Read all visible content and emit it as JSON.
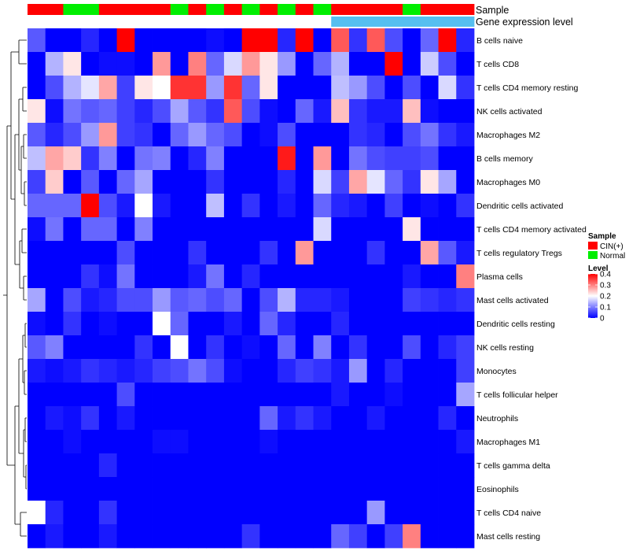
{
  "chart_data": {
    "type": "heatmap",
    "title": "",
    "annotation_tracks": [
      {
        "name": "Sample",
        "values": [
          "CIN(+)",
          "CIN(+)",
          "Normal",
          "Normal",
          "CIN(+)",
          "CIN(+)",
          "CIN(+)",
          "CIN(+)",
          "Normal",
          "CIN(+)",
          "Normal",
          "CIN(+)",
          "Normal",
          "CIN(+)",
          "Normal",
          "CIN(+)",
          "Normal",
          "CIN(+)",
          "CIN(+)",
          "CIN(+)",
          "CIN(+)",
          "Normal",
          "CIN(+)",
          "CIN(+)",
          "CIN(+)"
        ]
      },
      {
        "name": "Gene expression level",
        "values": [
          "Low",
          "Low",
          "Low",
          "Low",
          "Low",
          "Low",
          "Low",
          "Low",
          "Low",
          "Low",
          "Low",
          "Low",
          "Low",
          "Low",
          "Low",
          "Low",
          "Low",
          "High",
          "High",
          "High",
          "High",
          "High",
          "High",
          "High",
          "High"
        ]
      }
    ],
    "rows": [
      "B cells naive",
      "T cells CD8",
      "T cells CD4 memory resting",
      "NK cells activated",
      "Macrophages M2",
      "B cells memory",
      "Macrophages M0",
      "Dendritic cells activated",
      "T cells CD4 memory activated",
      "T cells regulatory  Tregs",
      "Plasma cells",
      "Mast cells activated",
      "Dendritic cells resting",
      "NK cells resting",
      "Monocytes",
      "T cells follicular helper",
      "Neutrophils",
      "Macrophages M1",
      "T cells gamma delta",
      "Eosinophils",
      "T cells CD4 naive",
      "Mast cells resting"
    ],
    "values": [
      [
        0.07,
        0.0,
        0.0,
        0.03,
        0.0,
        0.4,
        0.0,
        0.0,
        0.0,
        0.0,
        0.01,
        0.0,
        0.4,
        0.4,
        0.03,
        0.4,
        0.0,
        0.33,
        0.04,
        0.33,
        0.06,
        0.0,
        0.08,
        0.4,
        0.03
      ],
      [
        0.0,
        0.14,
        0.22,
        0.0,
        0.01,
        0.01,
        0.0,
        0.28,
        0.0,
        0.3,
        0.08,
        0.17,
        0.28,
        0.22,
        0.12,
        0.0,
        0.08,
        0.14,
        0.0,
        0.0,
        0.4,
        0.0,
        0.16,
        0.06,
        0.0
      ],
      [
        0.0,
        0.06,
        0.14,
        0.18,
        0.27,
        0.05,
        0.22,
        0.2,
        0.36,
        0.36,
        0.12,
        0.36,
        0.08,
        0.22,
        0.0,
        0.0,
        0.0,
        0.15,
        0.12,
        0.06,
        0.0,
        0.06,
        0.0,
        0.17,
        0.04
      ],
      [
        0.22,
        0.01,
        0.09,
        0.07,
        0.08,
        0.05,
        0.03,
        0.06,
        0.13,
        0.07,
        0.04,
        0.33,
        0.06,
        0.01,
        0.0,
        0.08,
        0.02,
        0.25,
        0.04,
        0.02,
        0.02,
        0.25,
        0.01,
        0.0,
        0.0
      ],
      [
        0.07,
        0.03,
        0.06,
        0.12,
        0.28,
        0.05,
        0.04,
        0.0,
        0.08,
        0.12,
        0.08,
        0.06,
        0.0,
        0.01,
        0.06,
        0.0,
        0.0,
        0.0,
        0.04,
        0.03,
        0.0,
        0.06,
        0.09,
        0.04,
        0.02
      ],
      [
        0.15,
        0.27,
        0.24,
        0.04,
        0.1,
        0.0,
        0.09,
        0.1,
        0.0,
        0.03,
        0.1,
        0.0,
        0.0,
        0.0,
        0.38,
        0.0,
        0.28,
        0.0,
        0.09,
        0.06,
        0.05,
        0.05,
        0.06,
        0.0,
        0.0
      ],
      [
        0.05,
        0.24,
        0.0,
        0.07,
        0.0,
        0.08,
        0.13,
        0.0,
        0.0,
        0.0,
        0.04,
        0.0,
        0.0,
        0.0,
        0.03,
        0.0,
        0.17,
        0.05,
        0.27,
        0.18,
        0.08,
        0.04,
        0.22,
        0.13,
        0.0
      ],
      [
        0.08,
        0.08,
        0.08,
        0.4,
        0.06,
        0.02,
        0.2,
        0.02,
        0.0,
        0.0,
        0.15,
        0.0,
        0.04,
        0.0,
        0.02,
        0.0,
        0.08,
        0.03,
        0.02,
        0.0,
        0.05,
        0.0,
        0.01,
        0.0,
        0.04
      ],
      [
        0.01,
        0.09,
        0.0,
        0.08,
        0.08,
        0.0,
        0.1,
        0.0,
        0.0,
        0.0,
        0.0,
        0.0,
        0.0,
        0.0,
        0.0,
        0.0,
        0.17,
        0.0,
        0.0,
        0.0,
        0.0,
        0.22,
        0.0,
        0.0,
        0.0
      ],
      [
        0.0,
        0.0,
        0.0,
        0.0,
        0.0,
        0.06,
        0.0,
        0.0,
        0.0,
        0.04,
        0.0,
        0.0,
        0.0,
        0.04,
        0.0,
        0.28,
        0.0,
        0.0,
        0.0,
        0.04,
        0.0,
        0.0,
        0.27,
        0.07,
        0.02
      ],
      [
        0.0,
        0.0,
        0.0,
        0.04,
        0.01,
        0.09,
        0.0,
        0.0,
        0.0,
        0.02,
        0.09,
        0.0,
        0.03,
        0.0,
        0.0,
        0.0,
        0.0,
        0.0,
        0.0,
        0.0,
        0.0,
        0.02,
        0.0,
        0.0,
        0.3
      ],
      [
        0.13,
        0.0,
        0.06,
        0.02,
        0.03,
        0.06,
        0.06,
        0.12,
        0.07,
        0.08,
        0.06,
        0.08,
        0.0,
        0.06,
        0.14,
        0.03,
        0.03,
        0.02,
        0.0,
        0.0,
        0.0,
        0.05,
        0.04,
        0.03,
        0.04
      ],
      [
        0.01,
        0.0,
        0.04,
        0.0,
        0.01,
        0.0,
        0.0,
        0.2,
        0.08,
        0.0,
        0.0,
        0.02,
        0.0,
        0.08,
        0.03,
        0.0,
        0.0,
        0.03,
        0.0,
        0.0,
        0.0,
        0.0,
        0.0,
        0.0,
        0.0
      ],
      [
        0.07,
        0.1,
        0.0,
        0.0,
        0.0,
        0.0,
        0.04,
        0.0,
        0.2,
        0.0,
        0.04,
        0.0,
        0.01,
        0.0,
        0.08,
        0.0,
        0.1,
        0.0,
        0.04,
        0.0,
        0.0,
        0.06,
        0.0,
        0.03,
        0.05
      ],
      [
        0.02,
        0.01,
        0.02,
        0.04,
        0.03,
        0.02,
        0.03,
        0.05,
        0.06,
        0.09,
        0.06,
        0.01,
        0.0,
        0.0,
        0.03,
        0.05,
        0.04,
        0.02,
        0.12,
        0.0,
        0.03,
        0.0,
        0.0,
        0.0,
        0.05
      ],
      [
        0.0,
        0.0,
        0.0,
        0.0,
        0.0,
        0.06,
        0.0,
        0.0,
        0.0,
        0.0,
        0.0,
        0.0,
        0.0,
        0.0,
        0.0,
        0.0,
        0.0,
        0.02,
        0.0,
        0.0,
        0.01,
        0.0,
        0.0,
        0.0,
        0.13
      ],
      [
        0.0,
        0.02,
        0.01,
        0.04,
        0.0,
        0.02,
        0.0,
        0.0,
        0.0,
        0.0,
        0.0,
        0.0,
        0.0,
        0.08,
        0.02,
        0.04,
        0.02,
        0.0,
        0.0,
        0.02,
        0.0,
        0.0,
        0.0,
        0.03,
        0.0
      ],
      [
        0.0,
        0.0,
        0.01,
        0.0,
        0.0,
        0.0,
        0.0,
        0.01,
        0.01,
        0.0,
        0.0,
        0.0,
        0.0,
        0.01,
        0.0,
        0.0,
        0.0,
        0.0,
        0.0,
        0.0,
        0.0,
        0.0,
        0.0,
        0.0,
        0.02
      ],
      [
        0.0,
        0.0,
        0.0,
        0.0,
        0.03,
        0.0,
        0.0,
        0.0,
        0.0,
        0.0,
        0.0,
        0.0,
        0.0,
        0.0,
        0.0,
        0.0,
        0.0,
        0.0,
        0.0,
        0.0,
        0.0,
        0.0,
        0.0,
        0.0,
        0.0
      ],
      [
        0.0,
        0.0,
        0.0,
        0.0,
        0.0,
        0.0,
        0.0,
        0.0,
        0.0,
        0.0,
        0.0,
        0.0,
        0.0,
        0.0,
        0.0,
        0.0,
        0.0,
        0.0,
        0.0,
        0.0,
        0.0,
        0.0,
        0.0,
        0.0,
        0.0
      ],
      [
        0.2,
        0.03,
        0.0,
        0.0,
        0.04,
        0.0,
        0.0,
        0.0,
        0.0,
        0.0,
        0.0,
        0.0,
        0.0,
        0.0,
        0.0,
        0.0,
        0.0,
        0.0,
        0.0,
        0.12,
        0.0,
        0.0,
        0.0,
        0.0,
        0.0
      ],
      [
        0.0,
        0.02,
        0.0,
        0.0,
        0.02,
        0.0,
        0.0,
        0.0,
        0.0,
        0.0,
        0.0,
        0.0,
        0.04,
        0.0,
        0.0,
        0.0,
        0.0,
        0.08,
        0.05,
        0.0,
        0.05,
        0.3,
        0.0,
        0.0,
        0.0
      ]
    ],
    "color_scale": {
      "min": 0,
      "max": 0.4,
      "low": "#0000ff",
      "mid": "#ffffff",
      "high": "#ff0000"
    }
  },
  "legend": {
    "sample": {
      "title": "Sample",
      "items": [
        {
          "label": "CIN(+)",
          "color": "#ff0000"
        },
        {
          "label": "Normal",
          "color": "#00ee00"
        }
      ]
    },
    "level": {
      "title": "Level",
      "ticks": [
        {
          "label": "0.4",
          "value": 0.4
        },
        {
          "label": "0.3",
          "value": 0.3
        },
        {
          "label": "0.2",
          "value": 0.2
        },
        {
          "label": "0.1",
          "value": 0.1
        },
        {
          "label": "0",
          "value": 0
        }
      ]
    }
  },
  "colors": {
    "low_expression": "#ffffff",
    "high_expression": "#56bff0",
    "cin": "#ff0000",
    "normal": "#00ee00"
  }
}
